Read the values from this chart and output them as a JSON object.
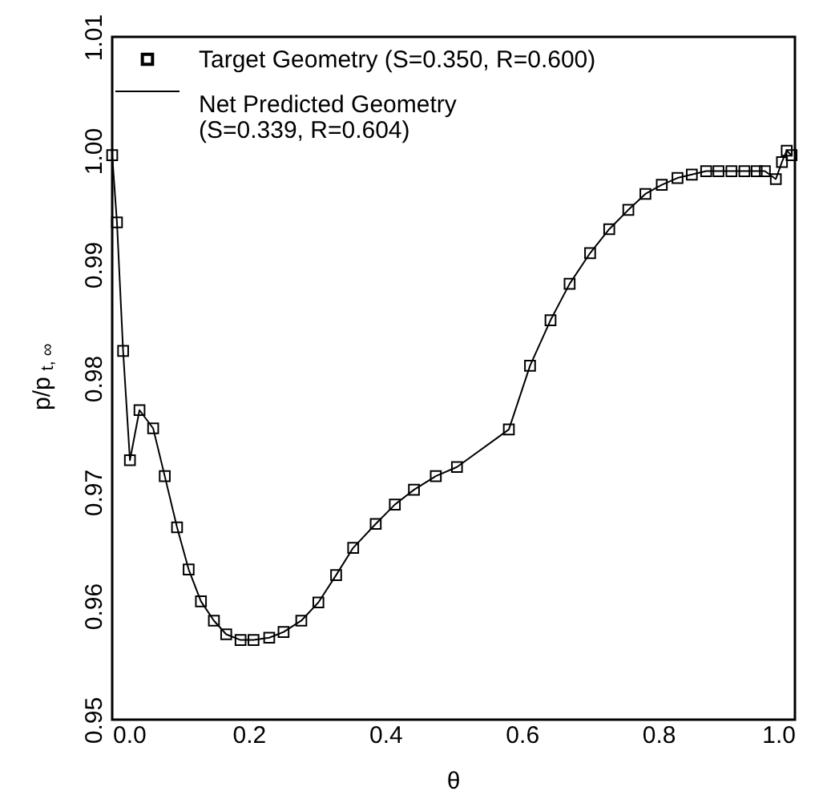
{
  "chart_data": {
    "type": "line",
    "xlabel": "θ",
    "ylabel": "p/p$_{t, ∞}$",
    "xlim": [
      0,
      1
    ],
    "ylim": [
      0.95,
      1.01
    ],
    "xticks": [
      {
        "value": 0,
        "label": "0.0"
      },
      0.2,
      0.4,
      0.6,
      0.8,
      {
        "value": 1,
        "label": "1.0"
      }
    ],
    "yticks": [
      0.95,
      0.96,
      0.97,
      0.98,
      0.99,
      {
        "value": 1,
        "label": "1.00"
      },
      1.01
    ],
    "grid": false,
    "legend": "top left",
    "x": [
      0.0,
      0.007,
      0.016,
      0.026,
      0.04,
      0.06,
      0.077,
      0.095,
      0.112,
      0.13,
      0.149,
      0.167,
      0.188,
      0.207,
      0.23,
      0.251,
      0.277,
      0.302,
      0.328,
      0.353,
      0.386,
      0.414,
      0.442,
      0.474,
      0.505,
      0.581,
      0.612,
      0.642,
      0.67,
      0.7,
      0.728,
      0.756,
      0.781,
      0.805,
      0.828,
      0.849,
      0.87,
      0.888,
      0.907,
      0.926,
      0.944,
      0.956,
      0.972,
      0.981,
      0.988,
      0.995
    ],
    "series": [
      {
        "name": "Target Geometry (S=0.350, R=0.600)",
        "type": "scatter",
        "marker": "square",
        "color": "#000000",
        "values": [
          0.9996,
          0.9937,
          0.9824,
          0.9728,
          0.9772,
          0.9756,
          0.9714,
          0.9669,
          0.9632,
          0.9604,
          0.9587,
          0.9575,
          0.957,
          0.957,
          0.9572,
          0.9577,
          0.9587,
          0.9603,
          0.9627,
          0.9651,
          0.9672,
          0.9689,
          0.9702,
          0.9714,
          0.9722,
          0.9755,
          0.9811,
          0.9851,
          0.9883,
          0.991,
          0.9931,
          0.9948,
          0.9962,
          0.997,
          0.9976,
          0.9979,
          0.9982,
          0.9982,
          0.9982,
          0.9982,
          0.9982,
          0.9982,
          0.9975,
          0.999,
          1.0,
          0.9996
        ]
      },
      {
        "name": "Net Predicted Geometry\n(S=0.339, R=0.604)",
        "line_style": "solid",
        "color": "#000000",
        "values": [
          0.9996,
          0.9937,
          0.9824,
          0.9728,
          0.9772,
          0.9756,
          0.9714,
          0.9669,
          0.9632,
          0.9604,
          0.9587,
          0.9575,
          0.957,
          0.957,
          0.9572,
          0.9577,
          0.9587,
          0.9603,
          0.9627,
          0.9651,
          0.9672,
          0.9689,
          0.9702,
          0.9714,
          0.9722,
          0.9755,
          0.9811,
          0.9851,
          0.9883,
          0.991,
          0.9931,
          0.9948,
          0.9962,
          0.997,
          0.9976,
          0.9979,
          0.9982,
          0.9982,
          0.9982,
          0.9982,
          0.9982,
          0.9982,
          0.9975,
          0.999,
          1.0,
          0.9996
        ]
      }
    ]
  }
}
